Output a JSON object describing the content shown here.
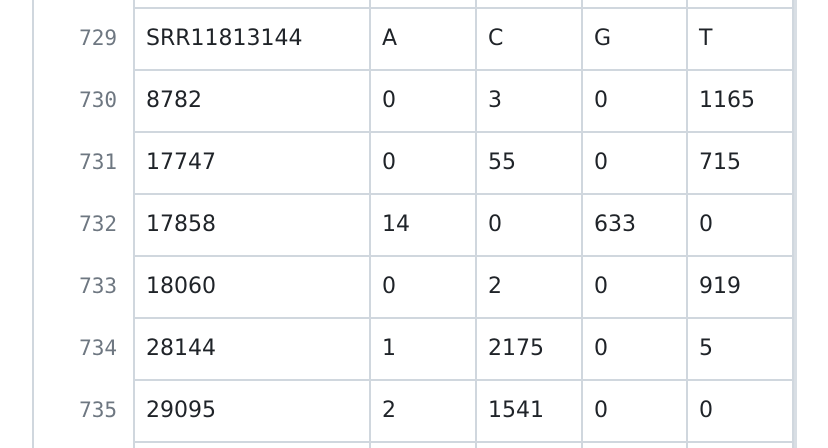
{
  "lines": [
    {
      "number": 729,
      "cells": [
        "SRR11813144",
        "A",
        "C",
        "G",
        "T"
      ]
    },
    {
      "number": 730,
      "cells": [
        8782,
        0,
        3,
        0,
        1165
      ]
    },
    {
      "number": 731,
      "cells": [
        17747,
        0,
        55,
        0,
        715
      ]
    },
    {
      "number": 732,
      "cells": [
        17858,
        14,
        0,
        633,
        0
      ]
    },
    {
      "number": 733,
      "cells": [
        18060,
        0,
        2,
        0,
        919
      ]
    },
    {
      "number": 734,
      "cells": [
        28144,
        1,
        2175,
        0,
        5
      ]
    },
    {
      "number": 735,
      "cells": [
        29095,
        2,
        1541,
        0,
        0
      ]
    }
  ]
}
